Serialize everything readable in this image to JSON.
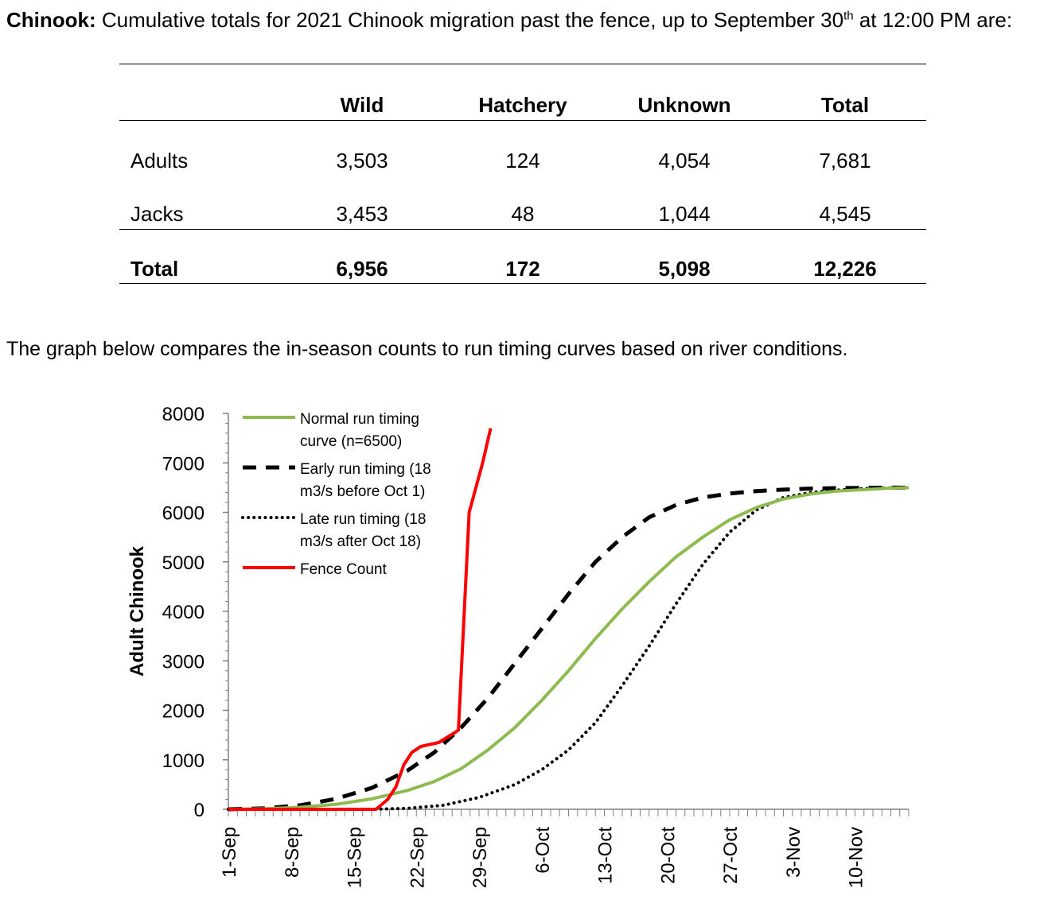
{
  "intro": {
    "species": "Chinook:",
    "text_before_sup": " Cumulative totals for 2021 Chinook migration past the fence, up to September 30",
    "superscript": "th",
    "text_after_sup": " at 12:00 PM are:"
  },
  "table": {
    "headers": [
      "Wild",
      "Hatchery",
      "Unknown",
      "Total"
    ],
    "rows": [
      {
        "label": "Adults",
        "values": [
          "3,503",
          "124",
          "4,054",
          "7,681"
        ]
      },
      {
        "label": "Jacks",
        "values": [
          "3,453",
          "48",
          "1,044",
          "4,545"
        ]
      },
      {
        "label": "Total",
        "values": [
          "6,956",
          "172",
          "5,098",
          "12,226"
        ]
      }
    ]
  },
  "paragraph": "The graph below compares the in-season counts to run timing curves based on river conditions.",
  "colors": {
    "normal": "#8dbb4f",
    "early": "#000000",
    "late": "#000000",
    "fence": "#ff0000",
    "axis": "#808080"
  },
  "chart_data": {
    "type": "line",
    "title": "",
    "xlabel": "",
    "ylabel": "Adult Chinook",
    "ylim": [
      0,
      8000
    ],
    "yticks": [
      "0",
      "1000",
      "2000",
      "3000",
      "4000",
      "5000",
      "6000",
      "7000",
      "8000"
    ],
    "xlim_days": [
      0,
      76
    ],
    "xtick_labels": [
      "1-Sep",
      "8-Sep",
      "15-Sep",
      "22-Sep",
      "29-Sep",
      "6-Oct",
      "13-Oct",
      "20-Oct",
      "27-Oct",
      "3-Nov",
      "10-Nov"
    ],
    "xtick_days": [
      0,
      7,
      14,
      21,
      28,
      35,
      42,
      49,
      56,
      63,
      70
    ],
    "grid": false,
    "legend_position": "top-left",
    "series": [
      {
        "name": "Normal run timing curve (n=6500)",
        "style": "solid",
        "x": [
          0,
          4,
          8,
          12,
          16,
          20,
          23,
          26,
          29,
          32,
          35,
          38,
          41,
          44,
          47,
          50,
          53,
          56,
          59,
          62,
          65,
          68,
          71,
          74,
          76
        ],
        "y": [
          0,
          10,
          40,
          100,
          210,
          380,
          560,
          820,
          1200,
          1650,
          2200,
          2800,
          3450,
          4050,
          4600,
          5100,
          5500,
          5850,
          6100,
          6270,
          6370,
          6430,
          6460,
          6490,
          6500
        ]
      },
      {
        "name": "Early run timing (18 m3/s before Oct 1)",
        "style": "dashed",
        "x": [
          0,
          4,
          8,
          12,
          16,
          20,
          23,
          26,
          29,
          32,
          35,
          38,
          41,
          44,
          47,
          50,
          53,
          56,
          59,
          62,
          65,
          68,
          71,
          74,
          76
        ],
        "y": [
          0,
          20,
          80,
          210,
          430,
          780,
          1150,
          1650,
          2250,
          2950,
          3650,
          4350,
          5000,
          5500,
          5900,
          6150,
          6300,
          6380,
          6430,
          6460,
          6480,
          6490,
          6495,
          6500,
          6500
        ]
      },
      {
        "name": "Late run timing (18 m3/s after Oct 18)",
        "style": "dotted",
        "x": [
          0,
          4,
          8,
          12,
          16,
          20,
          24,
          28,
          32,
          35,
          38,
          41,
          44,
          47,
          50,
          53,
          56,
          59,
          62,
          65,
          68,
          71,
          74,
          76
        ],
        "y": [
          0,
          0,
          0,
          0,
          0,
          20,
          80,
          240,
          500,
          800,
          1200,
          1750,
          2500,
          3300,
          4150,
          4950,
          5600,
          6050,
          6300,
          6400,
          6450,
          6480,
          6495,
          6500
        ]
      },
      {
        "name": "Fence Count",
        "style": "solid",
        "x": [
          0,
          3,
          6,
          9,
          12,
          15,
          16.5,
          17.8,
          18.7,
          19.6,
          20.5,
          21.5,
          23.5,
          25.3,
          25.7,
          26.9,
          28.4,
          29.3
        ],
        "y": [
          0,
          0,
          0,
          0,
          0,
          0,
          0,
          200,
          450,
          900,
          1150,
          1270,
          1350,
          1550,
          1600,
          6000,
          7000,
          7700
        ]
      }
    ]
  }
}
